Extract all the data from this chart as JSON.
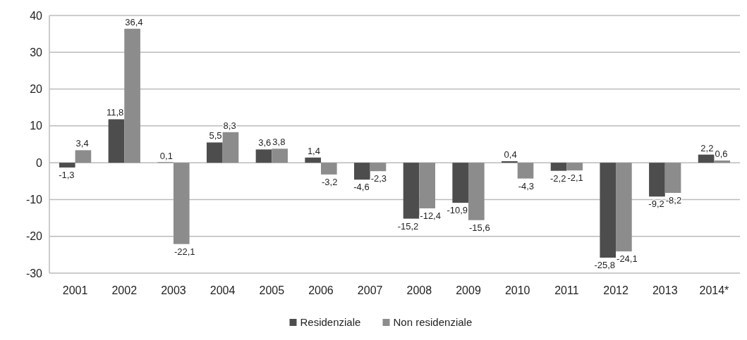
{
  "chart_data": {
    "type": "bar",
    "categories": [
      "2001",
      "2002",
      "2003",
      "2004",
      "2005",
      "2006",
      "2007",
      "2008",
      "2009",
      "2010",
      "2011",
      "2012",
      "2013",
      "2014*"
    ],
    "series": [
      {
        "name": "Residenziale",
        "color": "#4d4d4d",
        "values": [
          -1.3,
          11.8,
          0.1,
          5.5,
          3.6,
          1.4,
          -4.6,
          -15.2,
          -10.9,
          0.4,
          -2.2,
          -25.8,
          -9.2,
          2.2
        ],
        "value_labels": [
          "-1,3",
          "11,8",
          "0,1",
          "5,5",
          "3,6",
          "1,4",
          "-4,6",
          "-15,2",
          "-10,9",
          "0,4",
          "-2,2",
          "-25,8",
          "-9,2",
          "2,2"
        ]
      },
      {
        "name": "Non residenziale",
        "color": "#8c8c8c",
        "values": [
          3.4,
          36.4,
          -22.1,
          8.3,
          3.8,
          -3.2,
          -2.3,
          -12.4,
          -15.6,
          -4.3,
          -2.1,
          -24.1,
          -8.2,
          0.6
        ],
        "value_labels": [
          "3,4",
          "36,4",
          "-22,1",
          "8,3",
          "3,8",
          "-3,2",
          "-2,3",
          "-12,4",
          "-15,6",
          "-4,3",
          "-2,1",
          "-24,1",
          "-8,2",
          "0,6"
        ]
      }
    ],
    "ylim": [
      -30,
      40
    ],
    "yticks": [
      -30,
      -20,
      -10,
      0,
      10,
      20,
      30,
      40
    ],
    "grid": "y",
    "legend": "bottom"
  }
}
